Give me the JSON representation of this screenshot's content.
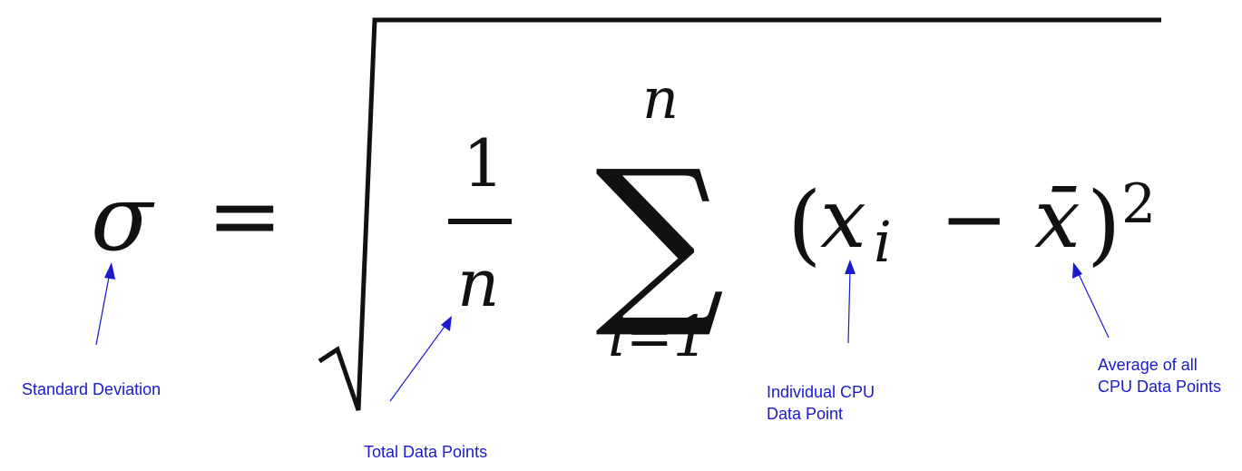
{
  "formula": {
    "sigma": "σ",
    "equals": "=",
    "fraction_numerator": "1",
    "fraction_denominator": "n",
    "sum_symbol": "∑",
    "sum_upper": "n",
    "sum_lower": "i=1",
    "open_paren": "(",
    "x": "x",
    "subscript_i": "i",
    "minus": "−",
    "x_bar": "x̄",
    "close_paren": ")",
    "exponent": "2"
  },
  "annotations": {
    "standard_deviation": "Standard Deviation",
    "total_data_points": "Total Data Points",
    "individual_line1": "Individual CPU",
    "individual_line2": "Data Point",
    "average_line1": "Average of all",
    "average_line2": "CPU Data Points"
  },
  "colors": {
    "annotation": "#1a1acc",
    "formula": "#111111"
  }
}
